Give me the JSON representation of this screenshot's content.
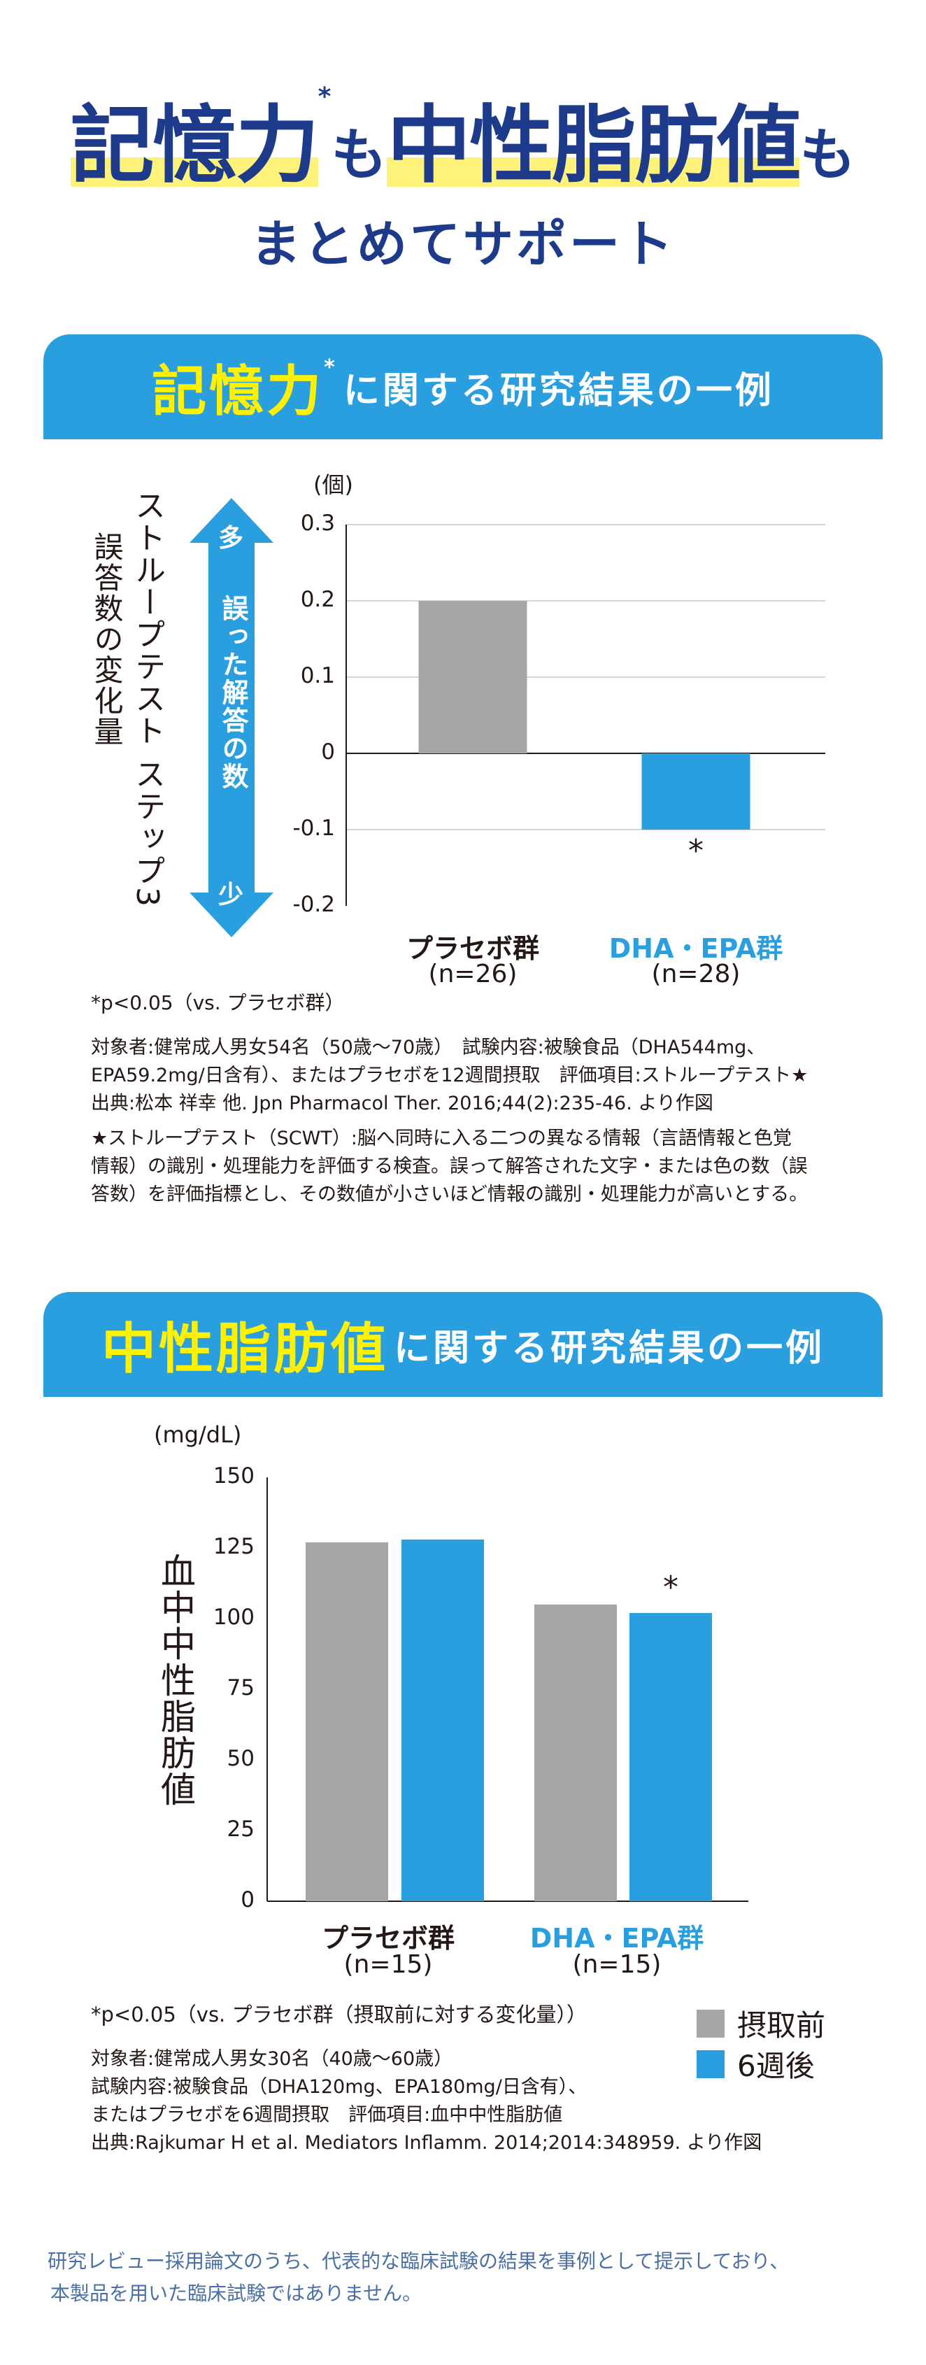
{
  "headline": {
    "part1": "記憶力",
    "mark": "*",
    "part2": "も",
    "part3": "中性脂肪値",
    "part4": "も",
    "subtitle": "まとめてサポート"
  },
  "section1": {
    "banner_key": "記憶力",
    "banner_mark": "*",
    "banner_rest": "に関する研究結果の一例",
    "side_label_line1": "ストループテスト ステップ3",
    "side_label_line2": "誤答数の変化量",
    "arrow_top": "多",
    "arrow_middle": "誤った解答の数",
    "arrow_bottom": "少",
    "note_significance": "*p<0.05（vs. プラセボ群）",
    "notes": [
      "対象者:健常成人男女54名（50歳〜70歳）　試験内容:被験食品（DHA544mg、",
      "EPA59.2mg/日含有）、またはプラセボを12週間摂取　評価項目:ストループテスト★",
      "出典:松本 祥幸 他. Jpn Pharmacol Ther. 2016;44(2):235-46. より作図"
    ],
    "definition": [
      "★ストループテスト（SCWT）:脳へ同時に入る二つの異なる情報（言語情報と色覚",
      "情報）の識別・処理能力を評価する検査。誤って解答された文字・または色の数（誤",
      "答数）を評価指標とし、その数値が小さいほど情報の識別・処理能力が高いとする。"
    ]
  },
  "section2": {
    "banner_key": "中性脂肪値",
    "banner_rest": "に関する研究結果の一例",
    "side_label": "血中中性脂肪値",
    "note_significance": "*p<0.05（vs. プラセボ群（摂取前に対する変化量））",
    "notes": [
      "対象者:健常成人男女30名（40歳〜60歳）",
      "試験内容:被験食品（DHA120mg、EPA180mg/日含有）、",
      "またはプラセボを6週間摂取　評価項目:血中中性脂肪値",
      "出典:Rajkumar H et al. Mediators Inflamm. 2014;2014:348959. より作図"
    ]
  },
  "footer": [
    "研究レビュー採用論文のうち、代表的な臨床試験の結果を事例として提示しており、",
    "本製品を用いた臨床試験ではありません。"
  ],
  "colors": {
    "navy": "#1e3a8a",
    "banner_blue": "#2a9fe0",
    "banner_yellow": "#fff100",
    "highlight": "#fff27a",
    "bar_gray": "#a6a6a6",
    "bar_blue": "#2a9fe0"
  },
  "chart_data": [
    {
      "type": "bar",
      "unit": "(個)",
      "categories": [
        "プラセボ群",
        "DHA・EPA群"
      ],
      "category_n": [
        "(n=26)",
        "(n=28)"
      ],
      "values": [
        0.2,
        -0.1
      ],
      "bar_colors": [
        "#a6a6a6",
        "#2a9fe0"
      ],
      "significance": [
        "",
        "*"
      ],
      "ylim": [
        -0.2,
        0.3
      ],
      "yticks": [
        "0.3",
        "0.2",
        "0.1",
        "0",
        "-0.1",
        "-0.2"
      ]
    },
    {
      "type": "bar",
      "unit": "(mg/dL)",
      "categories": [
        "プラセボ群",
        "DHA・EPA群"
      ],
      "category_n": [
        "(n=15)",
        "(n=15)"
      ],
      "series": [
        {
          "name": "摂取前",
          "values": [
            127,
            105
          ]
        },
        {
          "name": "6週後",
          "values": [
            128,
            102
          ]
        }
      ],
      "significance": [
        "",
        "*"
      ],
      "ylim": [
        0,
        150
      ],
      "yticks": [
        "150",
        "125",
        "100",
        "75",
        "50",
        "25",
        "0"
      ]
    }
  ]
}
